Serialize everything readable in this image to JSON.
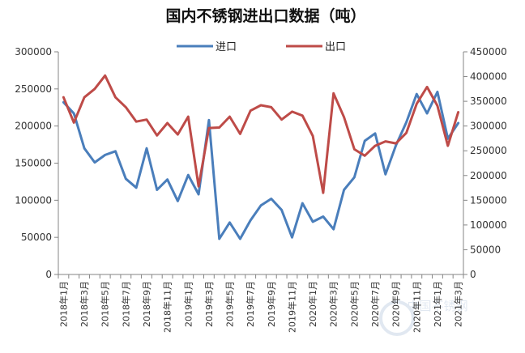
{
  "chart_data": {
    "type": "line",
    "title": "国内不锈钢进出口数据（吨）",
    "legend_position": "top-center",
    "grid": false,
    "y_left": {
      "min": 0,
      "max": 300000,
      "ticks": [
        "0",
        "50000",
        "100000",
        "150000",
        "200000",
        "250000",
        "300000"
      ]
    },
    "y_right": {
      "min": 0,
      "max": 450000,
      "ticks": [
        "0",
        "50000",
        "100000",
        "150000",
        "200000",
        "250000",
        "300000",
        "350000",
        "400000",
        "450000"
      ]
    },
    "x_labels": [
      "2018年1月",
      "2018年2月",
      "2018年3月",
      "2018年4月",
      "2018年5月",
      "2018年6月",
      "2018年7月",
      "2018年8月",
      "2018年9月",
      "2018年10月",
      "2018年11月",
      "2018年12月",
      "2019年1月",
      "2019年2月",
      "2019年3月",
      "2019年4月",
      "2019年5月",
      "2019年6月",
      "2019年7月",
      "2019年8月",
      "2019年9月",
      "2019年10月",
      "2019年11月",
      "2019年12月",
      "2020年1月",
      "2020年2月",
      "2020年3月",
      "2020年4月",
      "2020年5月",
      "2020年6月",
      "2020年7月",
      "2020年8月",
      "2020年9月",
      "2020年10月",
      "2020年11月",
      "2020年12月",
      "2021年1月",
      "2021年2月",
      "2021年3月"
    ],
    "shown_tick_labels": [
      "2018年1月",
      "2018年3月",
      "2018年5月",
      "2018年7月",
      "2018年9月",
      "2018年11月",
      "2019年1月",
      "2019年3月",
      "2019年5月",
      "2019年7月",
      "2019年9月",
      "2019年11月",
      "2020年1月",
      "2020年3月",
      "2020年5月",
      "2020年7月",
      "2020年9月",
      "2020年11月",
      "2021年1月",
      "2021年3月"
    ],
    "series": [
      {
        "name": "进口",
        "axis": "left",
        "color": "#4a7ebb",
        "values": [
          232000,
          217000,
          170000,
          151000,
          161000,
          166000,
          129000,
          117000,
          170000,
          114000,
          128000,
          99000,
          134000,
          108000,
          208000,
          48000,
          70000,
          48000,
          73000,
          93000,
          102000,
          87000,
          50000,
          96000,
          71000,
          78000,
          61000,
          114000,
          131000,
          180000,
          190000,
          135000,
          174000,
          205000,
          243000,
          217000,
          246000,
          183000,
          204000
        ]
      },
      {
        "name": "出口",
        "axis": "right",
        "color": "#be4b48",
        "values": [
          358000,
          307000,
          358000,
          375000,
          402000,
          358000,
          338000,
          309000,
          313000,
          281000,
          306000,
          283000,
          319000,
          178000,
          296000,
          297000,
          319000,
          284000,
          331000,
          342000,
          338000,
          313000,
          329000,
          321000,
          280000,
          165000,
          366000,
          318000,
          253000,
          240000,
          260000,
          269000,
          265000,
          286000,
          345000,
          379000,
          341000,
          260000,
          328000
        ]
      }
    ]
  },
  "watermark": {
    "text": "中国不锈钢",
    "color": "#c9d6e6"
  }
}
